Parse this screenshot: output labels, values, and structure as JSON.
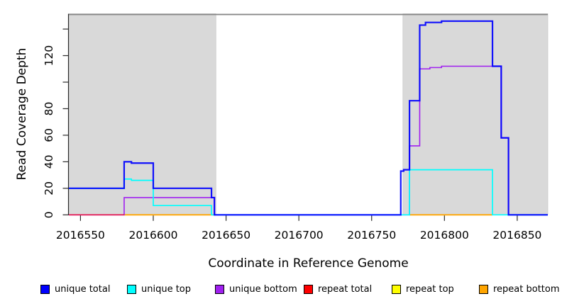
{
  "chart_data": {
    "type": "line",
    "step": true,
    "title": "",
    "xlabel": "Coordinate in Reference Genome",
    "ylabel": "Read Coverage Depth",
    "xlim": [
      2016542,
      2016871
    ],
    "ylim": [
      0,
      151.5
    ],
    "x_ticks": [
      2016550,
      2016600,
      2016650,
      2016700,
      2016750,
      2016800,
      2016850
    ],
    "y_ticks": [
      {
        "value": 0,
        "label": "0"
      },
      {
        "value": 20,
        "label": "20"
      },
      {
        "value": 40,
        "label": "40"
      },
      {
        "value": 60,
        "label": "60"
      },
      {
        "value": 80,
        "label": "80"
      },
      {
        "value": 100,
        "label": ""
      },
      {
        "value": 120,
        "label": "120"
      },
      {
        "value": 140,
        "label": ""
      }
    ],
    "grid": false,
    "legend_position": "bottom",
    "shaded_regions": [
      {
        "x0": 2016542,
        "x1": 2016643,
        "meaning": "repeat region"
      },
      {
        "x0": 2016771.5,
        "x1": 2016871,
        "meaning": "repeat region"
      }
    ],
    "colors": {
      "shade": "#d9d9d9",
      "shade_border": "#c6c6c6",
      "top_border": "#888888",
      "axis": "#2b2b2b",
      "unique_total": "#0000ff",
      "unique_top": "#00ffff",
      "unique_bottom": "#a020f0",
      "repeat_total": "#ff0000",
      "repeat_top": "#ffff00",
      "repeat_bottom": "#ffa500"
    },
    "series": [
      {
        "name": "repeat top",
        "color": "#ffff00",
        "lw": 1.5,
        "opacity": 1,
        "segments": [
          [
            [
              2016542,
              0
            ],
            [
              2016871,
              0
            ]
          ]
        ]
      },
      {
        "name": "repeat bottom",
        "color": "#ffa500",
        "lw": 1.8,
        "opacity": 1,
        "segments": [
          [
            [
              2016580,
              0
            ],
            [
              2016643,
              0
            ]
          ],
          [
            [
              2016776,
              0
            ],
            [
              2016833,
              0
            ]
          ]
        ]
      },
      {
        "name": "unique bottom",
        "color": "#a020f0",
        "lw": 1.6,
        "opacity": 1,
        "segments": [
          [
            [
              2016542,
              0
            ],
            [
              2016580,
              13
            ],
            [
              2016642,
              0
            ],
            [
              2016776,
              52
            ],
            [
              2016783,
              110
            ],
            [
              2016790,
              111
            ],
            [
              2016798,
              112
            ],
            [
              2016839,
              58
            ],
            [
              2016844,
              0
            ],
            [
              2016871,
              0
            ]
          ]
        ]
      },
      {
        "name": "repeat total",
        "color": "#ff0000",
        "lw": 1.6,
        "opacity": 0.7,
        "segments": [
          [
            [
              2016542,
              0
            ],
            [
              2016580,
              0
            ]
          ]
        ]
      },
      {
        "name": "unique top",
        "color": "#00ffff",
        "lw": 1.7,
        "opacity": 1,
        "segments": [
          [
            [
              2016542,
              20
            ],
            [
              2016580,
              27
            ],
            [
              2016585,
              26
            ],
            [
              2016600,
              7
            ],
            [
              2016640,
              0
            ],
            [
              2016776,
              34
            ],
            [
              2016833,
              0
            ],
            [
              2016871,
              0
            ]
          ]
        ]
      },
      {
        "name": "unique total",
        "color": "#0000ff",
        "lw": 2.2,
        "opacity": 0.92,
        "segments": [
          [
            [
              2016542,
              20
            ],
            [
              2016580,
              40
            ],
            [
              2016585,
              39
            ],
            [
              2016600,
              20
            ],
            [
              2016640,
              13
            ],
            [
              2016642,
              0
            ],
            [
              2016770,
              33
            ],
            [
              2016772,
              34
            ],
            [
              2016776,
              86
            ],
            [
              2016783,
              143
            ],
            [
              2016787,
              145
            ],
            [
              2016798,
              146
            ],
            [
              2016833,
              112
            ],
            [
              2016839,
              58
            ],
            [
              2016844,
              0
            ],
            [
              2016871,
              0
            ]
          ]
        ]
      }
    ],
    "legend": [
      {
        "label": "unique total",
        "color": "#0000ff"
      },
      {
        "label": "unique top",
        "color": "#00ffff"
      },
      {
        "label": "unique bottom",
        "color": "#a020f0"
      },
      {
        "label": "repeat total",
        "color": "#ff0000"
      },
      {
        "label": "repeat top",
        "color": "#ffff00"
      },
      {
        "label": "repeat bottom",
        "color": "#ffa500"
      }
    ]
  }
}
